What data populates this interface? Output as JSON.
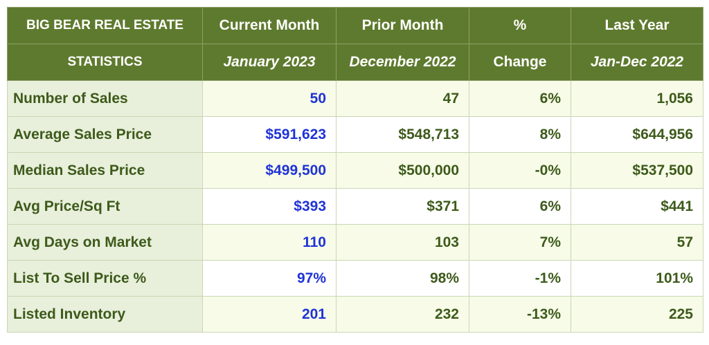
{
  "table": {
    "corner_line1": "BIG BEAR REAL ESTATE",
    "corner_line2": "STATISTICS",
    "columns": [
      {
        "line1": "Current Month",
        "line2": "January 2023"
      },
      {
        "line1": "Prior Month",
        "line2": "December 2022"
      },
      {
        "line1": "%",
        "line2": "Change"
      },
      {
        "line1": "Last Year",
        "line2": "Jan-Dec 2022"
      }
    ],
    "rows": [
      {
        "label": "Number of Sales",
        "current": "50",
        "prior": "47",
        "change": "6%",
        "last_year": "1,056"
      },
      {
        "label": "Average Sales Price",
        "current": "$591,623",
        "prior": "$548,713",
        "change": "8%",
        "last_year": "$644,956"
      },
      {
        "label": "Median Sales Price",
        "current": "$499,500",
        "prior": "$500,000",
        "change": "-0%",
        "last_year": "$537,500"
      },
      {
        "label": "Avg Price/Sq Ft",
        "current": "$393",
        "prior": "$371",
        "change": "6%",
        "last_year": "$441"
      },
      {
        "label": "Avg Days on Market",
        "current": "110",
        "prior": "103",
        "change": "7%",
        "last_year": "57"
      },
      {
        "label": "List To Sell Price %",
        "current": "97%",
        "prior": "98%",
        "change": "-1%",
        "last_year": "101%"
      },
      {
        "label": "Listed Inventory",
        "current": "201",
        "prior": "232",
        "change": "-13%",
        "last_year": "225"
      }
    ]
  },
  "colors": {
    "header_bg": "#5e7a2e",
    "label_bg": "#e8efdb",
    "text_green": "#3d5a1a",
    "current_blue": "#1f33d6"
  }
}
